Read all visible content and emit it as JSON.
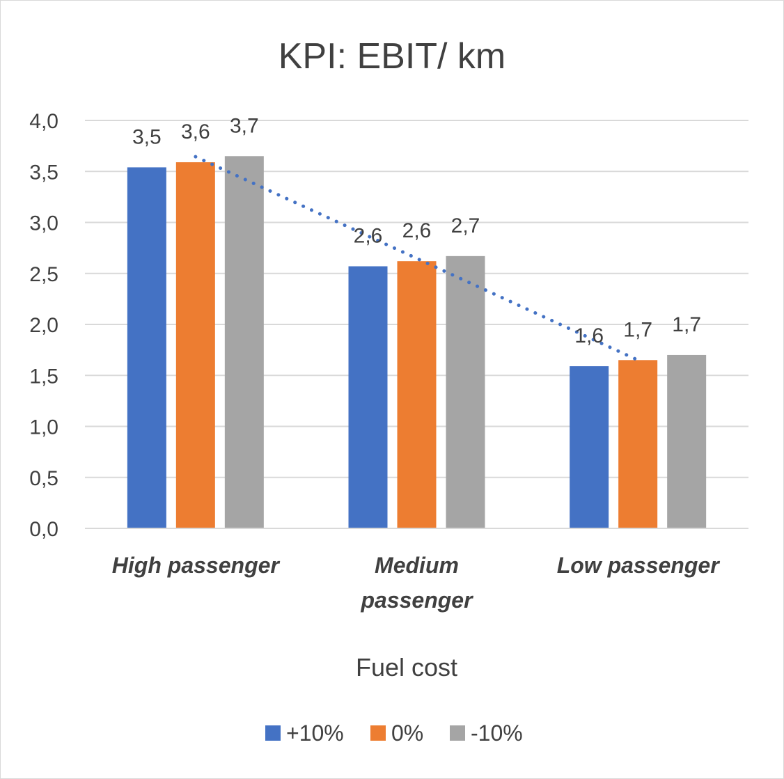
{
  "chart_data": {
    "type": "bar",
    "title": "KPI: EBIT/ km",
    "xlabel": "Fuel cost",
    "ylabel": "",
    "ylim": [
      0,
      4
    ],
    "yticks": [
      "0,0",
      "0,5",
      "1,0",
      "1,5",
      "2,0",
      "2,5",
      "3,0",
      "3,5",
      "4,0"
    ],
    "categories": [
      [
        "High passenger"
      ],
      [
        "Medium",
        "passenger"
      ],
      [
        "Low passenger"
      ]
    ],
    "series": [
      {
        "name": "+10%",
        "color": "#4472C4",
        "values": [
          3.54,
          2.57,
          1.59
        ],
        "labels": [
          "3,5",
          "2,6",
          "1,6"
        ]
      },
      {
        "name": "0%",
        "color": "#ED7D31",
        "values": [
          3.59,
          2.62,
          1.65
        ],
        "labels": [
          "3,6",
          "2,6",
          "1,7"
        ]
      },
      {
        "name": "-10%",
        "color": "#A5A5A5",
        "values": [
          3.65,
          2.67,
          1.7
        ],
        "labels": [
          "3,7",
          "2,7",
          "1,7"
        ]
      }
    ],
    "trendline": {
      "series": "0%",
      "style": "dotted",
      "color": "#4472C4"
    },
    "grid": true,
    "legend": "bottom"
  }
}
